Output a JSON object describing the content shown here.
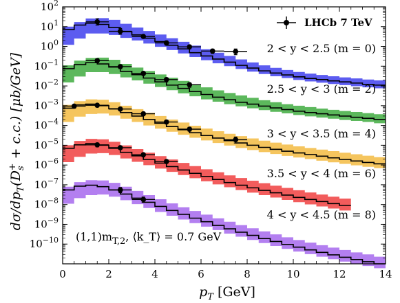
{
  "chart_data": {
    "type": "line",
    "xlabel": "p_T [GeV]",
    "ylabel": "dσ/dp_T(D_s^+ + c.c.) [μb/GeV]",
    "xlim": [
      0,
      14
    ],
    "ylim_log10": [
      -11,
      2
    ],
    "yscale": "log",
    "x_ticks": [
      "0",
      "2",
      "4",
      "6",
      "8",
      "10",
      "12",
      "14"
    ],
    "y_ticks": [
      "10^2",
      "10^1",
      "10^0",
      "10^-1",
      "10^-2",
      "10^-3",
      "10^-4",
      "10^-5",
      "10^-6",
      "10^-7",
      "10^-8",
      "10^-9",
      "10^-10"
    ],
    "legend": {
      "label": "LHCb 7 TeV",
      "position": "top-right"
    },
    "annotation": "(1,1)m_T,2, ⟨k_T⟩ = 0.7 GeV",
    "series": [
      {
        "name": "2 < y < 2.5 (m = 0)",
        "color": "#5c5cf0",
        "x_bins": [
          0,
          0.5,
          1,
          1.5,
          2,
          2.5,
          3,
          3.5,
          4,
          4.5,
          5,
          5.5,
          6,
          6.5,
          7,
          7.5,
          8,
          8.5,
          9,
          9.5,
          10,
          10.5,
          11,
          11.5,
          12,
          12.5,
          13,
          13.5,
          14
        ],
        "central": [
          7,
          12,
          15,
          13,
          9,
          5.5,
          3.8,
          2.6,
          1.75,
          1.15,
          0.75,
          0.48,
          0.33,
          0.23,
          0.16,
          0.11,
          0.08,
          0.058,
          0.045,
          0.036,
          0.029,
          0.024,
          0.021,
          0.018,
          0.016,
          0.014,
          0.012,
          0.011
        ],
        "band_low": [
          1.2,
          2.5,
          4.5,
          4.5,
          3.8,
          2.7,
          2.0,
          1.4,
          0.95,
          0.65,
          0.44,
          0.29,
          0.2,
          0.14,
          0.1,
          0.072,
          0.053,
          0.04,
          0.031,
          0.025,
          0.02,
          0.017,
          0.0145,
          0.0125,
          0.011,
          0.0097,
          0.0085,
          0.0076
        ],
        "band_high": [
          10,
          17,
          26,
          27,
          22,
          14,
          9,
          6,
          4,
          2.6,
          1.7,
          1.1,
          0.72,
          0.48,
          0.33,
          0.22,
          0.155,
          0.11,
          0.082,
          0.064,
          0.051,
          0.042,
          0.036,
          0.031,
          0.027,
          0.024,
          0.021,
          0.019
        ],
        "points": [
          {
            "x": 1.5,
            "y": 17.5,
            "yerr_lo": 5.5,
            "yerr_hi": 7.5
          },
          {
            "x": 2.5,
            "y": 5.8,
            "yerr_lo": 1.7,
            "yerr_hi": 2.3
          },
          {
            "x": 3.5,
            "y": 3.2,
            "yerr_lo": 0.6,
            "yerr_hi": 0.7
          },
          {
            "x": 4.5,
            "y": 1.5,
            "yerr_lo": 0.35,
            "yerr_hi": 0.4
          },
          {
            "x": 5.5,
            "y": 0.95,
            "yerr_lo": 0.2,
            "yerr_hi": 0.22
          },
          {
            "x": 6.5,
            "y": 0.58,
            "yerr_lo": 0.14,
            "yerr_hi": 0.15
          },
          {
            "x": 7.5,
            "y": 0.55,
            "yerr_lo": 0.17,
            "yerr_hi": 0.19
          }
        ]
      },
      {
        "name": "2.5 < y < 3 (m = 2)",
        "color": "#5cb85c",
        "x_bins": [
          0,
          0.5,
          1,
          1.5,
          2,
          2.5,
          3,
          3.5,
          4,
          4.5,
          5,
          5.5,
          6,
          6.5,
          7,
          7.5,
          8,
          8.5,
          9,
          9.5,
          10,
          10.5,
          11,
          11.5,
          12,
          12.5,
          13,
          13.5,
          14
        ],
        "central": [
          0.075,
          0.12,
          0.15,
          0.13,
          0.09,
          0.055,
          0.037,
          0.025,
          0.016,
          0.011,
          0.0075,
          0.0052,
          0.0037,
          0.0027,
          0.002,
          0.0015,
          0.0012,
          0.00095,
          0.00077,
          0.00064,
          0.00053,
          0.00045,
          0.00039,
          0.00034,
          0.0003,
          0.00026,
          0.00023,
          0.0002
        ],
        "band_low": [
          0.015,
          0.03,
          0.05,
          0.05,
          0.04,
          0.027,
          0.019,
          0.013,
          0.0088,
          0.0061,
          0.0042,
          0.003,
          0.0021,
          0.0016,
          0.0012,
          0.00093,
          0.00074,
          0.0006,
          0.00049,
          0.00041,
          0.00034,
          0.00029,
          0.00025,
          0.00022,
          0.00019,
          0.00017,
          0.00015,
          0.00013
        ],
        "band_high": [
          0.11,
          0.19,
          0.26,
          0.27,
          0.21,
          0.13,
          0.085,
          0.057,
          0.038,
          0.026,
          0.018,
          0.012,
          0.0085,
          0.006,
          0.0044,
          0.0033,
          0.0025,
          0.0019,
          0.0015,
          0.0012,
          0.001,
          0.00085,
          0.00072,
          0.00062,
          0.00054,
          0.00048,
          0.00042,
          0.00037
        ],
        "points": [
          {
            "x": 1.5,
            "y": 0.19,
            "yerr_lo": 0.04,
            "yerr_hi": 0.05
          },
          {
            "x": 2.5,
            "y": 0.095,
            "yerr_lo": 0.02,
            "yerr_hi": 0.022
          },
          {
            "x": 3.5,
            "y": 0.043,
            "yerr_lo": 0.009,
            "yerr_hi": 0.01
          },
          {
            "x": 4.5,
            "y": 0.021,
            "yerr_lo": 0.005,
            "yerr_hi": 0.005
          },
          {
            "x": 5.5,
            "y": 0.0115,
            "yerr_lo": 0.003,
            "yerr_hi": 0.003
          }
        ]
      },
      {
        "name": "3 < y < 3.5 (m = 4)",
        "color": "#f5c55e",
        "x_bins": [
          0,
          0.5,
          1,
          1.5,
          2,
          2.5,
          3,
          3.5,
          4,
          4.5,
          5,
          5.5,
          6,
          6.5,
          7,
          7.5,
          8,
          8.5,
          9,
          9.5,
          10,
          10.5,
          11,
          11.5,
          12,
          12.5,
          13,
          13.5,
          14
        ],
        "central": [
          0.00075,
          0.0011,
          0.0012,
          0.001,
          0.0007,
          0.00045,
          0.0003,
          0.0002,
          0.00013,
          8.8e-05,
          6.1e-05,
          4.3e-05,
          3.1e-05,
          2.3e-05,
          1.7e-05,
          1.3e-05,
          1e-05,
          7.8e-06,
          6.2e-06,
          5e-06,
          4.1e-06,
          3.4e-06,
          2.8e-06,
          2.3e-06,
          1.9e-06,
          1.6e-06,
          1.35e-06,
          1.15e-06
        ],
        "band_low": [
          0.00015,
          0.00028,
          0.00038,
          0.0004,
          0.00032,
          0.00022,
          0.00015,
          0.0001,
          6.9e-05,
          4.8e-05,
          3.4e-05,
          2.4e-05,
          1.75e-05,
          1.3e-05,
          9.6e-06,
          7.3e-06,
          5.7e-06,
          4.5e-06,
          3.6e-06,
          2.9e-06,
          2.4e-06,
          2e-06,
          1.65e-06,
          1.37e-06,
          1.14e-06,
          9.6e-07,
          8.1e-07,
          6.9e-07
        ],
        "band_high": [
          0.0011,
          0.0017,
          0.0021,
          0.002,
          0.0015,
          0.001,
          0.00067,
          0.00044,
          0.0003,
          0.0002,
          0.00014,
          9.7e-05,
          7e-05,
          5.1e-05,
          3.8e-05,
          2.9e-05,
          2.2e-05,
          1.7e-05,
          1.35e-05,
          1.08e-05,
          8.8e-06,
          7.3e-06,
          6e-06,
          5e-06,
          4.2e-06,
          3.5e-06,
          2.95e-06,
          2.5e-06
        ],
        "points": [
          {
            "x": 0.5,
            "y": 0.00095,
            "yerr_lo": 0.0002,
            "yerr_hi": 0.0002
          },
          {
            "x": 1.5,
            "y": 0.00105,
            "yerr_lo": 0.0002,
            "yerr_hi": 0.0002
          },
          {
            "x": 2.5,
            "y": 0.00068,
            "yerr_lo": 0.00013,
            "yerr_hi": 0.00014
          },
          {
            "x": 3.5,
            "y": 0.00039,
            "yerr_lo": 8e-05,
            "yerr_hi": 8e-05
          },
          {
            "x": 4.5,
            "y": 0.00015,
            "yerr_lo": 3e-05,
            "yerr_hi": 3.5e-05
          },
          {
            "x": 5.5,
            "y": 6.5e-05,
            "yerr_lo": 1.4e-05,
            "yerr_hi": 1.5e-05
          },
          {
            "x": 7.5,
            "y": 1.9e-05,
            "yerr_lo": 6e-06,
            "yerr_hi": 7e-06
          }
        ]
      },
      {
        "name": "3.5 < y < 4 (m = 6)",
        "color": "#f25c5c",
        "x_bins": [
          0,
          0.5,
          1,
          1.5,
          2,
          2.5,
          3,
          3.5,
          4,
          4.5,
          5,
          5.5,
          6,
          6.5,
          7,
          7.5,
          8,
          8.5,
          9,
          9.5,
          10,
          10.5,
          11,
          11.5,
          12,
          12.5
        ],
        "central": [
          7e-06,
          1.05e-05,
          1.2e-05,
          1e-05,
          7e-06,
          4.4e-06,
          2.9e-06,
          1.9e-06,
          1.25e-06,
          8.3e-07,
          5.6e-07,
          3.8e-07,
          2.65e-07,
          1.85e-07,
          1.3e-07,
          9.5e-08,
          7e-08,
          5.2e-08,
          3.95e-08,
          3e-08,
          2.3e-08,
          1.8e-08,
          1.42e-08,
          1.12e-08,
          9e-09
        ],
        "band_low": [
          1.4e-06,
          2.6e-06,
          3.8e-06,
          4e-06,
          3.2e-06,
          2.15e-06,
          1.45e-06,
          9.8e-07,
          6.6e-07,
          4.5e-07,
          3.1e-07,
          2.15e-07,
          1.5e-07,
          1.05e-07,
          7.5e-08,
          5.4e-08,
          4e-08,
          3e-08,
          2.25e-08,
          1.7e-08,
          1.32e-08,
          1.02e-08,
          8e-09,
          6.3e-09,
          5e-09
        ],
        "band_high": [
          1e-05,
          1.65e-05,
          2.1e-05,
          2e-05,
          1.5e-05,
          9.8e-06,
          6.4e-06,
          4.2e-06,
          2.8e-06,
          1.9e-06,
          1.28e-06,
          8.8e-07,
          6.1e-07,
          4.3e-07,
          3e-07,
          2.2e-07,
          1.6e-07,
          1.2e-07,
          9e-08,
          6.9e-08,
          5.3e-08,
          4.1e-08,
          3.2e-08,
          2.5e-08,
          2e-08
        ],
        "points": [
          {
            "x": 1.5,
            "y": 1.05e-05,
            "yerr_lo": 2.2e-06,
            "yerr_hi": 2.4e-06
          },
          {
            "x": 2.5,
            "y": 7.5e-06,
            "yerr_lo": 1.4e-06,
            "yerr_hi": 1.5e-06
          },
          {
            "x": 3.5,
            "y": 3.3e-06,
            "yerr_lo": 7e-07,
            "yerr_hi": 7e-07
          },
          {
            "x": 4.5,
            "y": 1.5e-06,
            "yerr_lo": 3e-07,
            "yerr_hi": 3.5e-07
          }
        ]
      },
      {
        "name": "4 < y < 4.5 (m = 8)",
        "color": "#b37ff0",
        "x_bins": [
          0,
          0.5,
          1,
          1.5,
          2,
          2.5,
          3,
          3.5,
          4,
          4.5,
          5,
          5.5,
          6,
          6.5,
          7,
          7.5,
          8,
          8.5,
          9,
          9.5,
          10,
          10.5,
          11,
          11.5,
          12,
          12.5,
          13,
          13.5,
          14
        ],
        "central": [
          5.5e-08,
          8.5e-08,
          9.5e-08,
          8e-08,
          5.5e-08,
          3.4e-08,
          2.1e-08,
          1.3e-08,
          8e-09,
          5e-09,
          3.2e-09,
          2.05e-09,
          1.35e-09,
          8.8e-10,
          5.9e-10,
          4e-10,
          2.75e-10,
          1.9e-10,
          1.35e-10,
          9.6e-11,
          7e-11,
          5.1e-11,
          3.8e-11,
          2.85e-11,
          2.15e-11,
          1.65e-11,
          1.28e-11,
          1e-11
        ],
        "band_low": [
          1.1e-08,
          2.1e-08,
          3e-08,
          3.2e-08,
          2.5e-08,
          1.65e-08,
          1.05e-08,
          6.7e-09,
          4.2e-09,
          2.7e-09,
          1.75e-09,
          1.15e-09,
          7.6e-10,
          5.1e-10,
          3.4e-10,
          2.35e-10,
          1.62e-10,
          1.13e-10,
          8e-11,
          5.7e-11,
          4.2e-11,
          3.1e-11,
          2.3e-11,
          1.72e-11,
          1.3e-11,
          1e-11,
          7.8e-12,
          6e-12
        ],
        "band_high": [
          8e-08,
          1.35e-07,
          1.7e-07,
          1.65e-07,
          1.25e-07,
          8e-08,
          4.9e-08,
          3e-08,
          1.85e-08,
          1.15e-08,
          7.3e-09,
          4.7e-09,
          3.1e-09,
          2e-09,
          1.35e-09,
          9.1e-10,
          6.3e-10,
          4.4e-10,
          3.1e-10,
          2.2e-10,
          1.6e-10,
          1.18e-10,
          8.8e-11,
          6.6e-11,
          5e-11,
          3.8e-11,
          3e-11,
          2.3e-11
        ],
        "points": [
          {
            "x": 2.5,
            "y": 5.5e-08,
            "yerr_lo": 1.5e-08,
            "yerr_hi": 1.8e-08
          },
          {
            "x": 3.5,
            "y": 1.8e-08,
            "yerr_lo": 5e-09,
            "yerr_hi": 6e-09
          }
        ]
      }
    ]
  }
}
